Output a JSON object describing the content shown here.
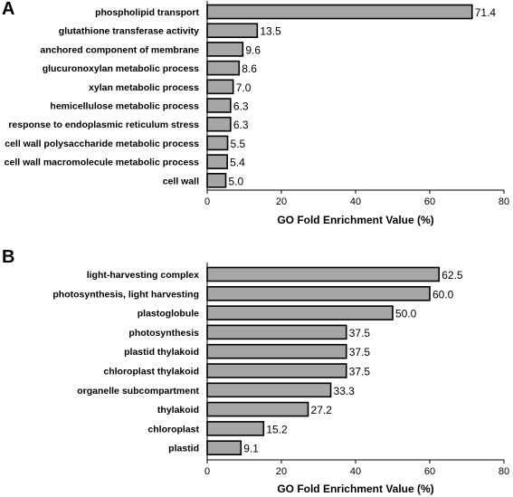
{
  "colors": {
    "bar_fill": "#a6a6a6",
    "bar_stroke": "#000000",
    "text": "#000000"
  },
  "chart_data": [
    {
      "type": "bar",
      "orientation": "horizontal",
      "panel": "A",
      "categories": [
        "phospholipid transport",
        "glutathione transferase activity",
        "anchored component of membrane",
        "glucuronoxylan metabolic process",
        "xylan metabolic process",
        "hemicellulose metabolic process",
        "response to endoplasmic reticulum stress",
        "cell wall polysaccharide metabolic process",
        "cell wall macromolecule metabolic process",
        "cell wall"
      ],
      "values": [
        71.4,
        13.5,
        9.6,
        8.6,
        7.0,
        6.3,
        6.3,
        5.5,
        5.4,
        5.0
      ],
      "value_labels": [
        "71.4",
        "13.5",
        "9.6",
        "8.6",
        "7.0",
        "6.3",
        "6.3",
        "5.5",
        "5.4",
        "5.0"
      ],
      "xlabel": "GO Fold Enrichment Value (%)",
      "xlim": [
        0,
        80
      ],
      "xticks": [
        "0",
        "20",
        "40",
        "60",
        "80"
      ],
      "grid": false,
      "legend": "none"
    },
    {
      "type": "bar",
      "orientation": "horizontal",
      "panel": "B",
      "categories": [
        "light-harvesting complex",
        "photosynthesis, light harvesting",
        "plastoglobule",
        "photosynthesis",
        "plastid thylakoid",
        "chloroplast thylakoid",
        "organelle subcompartment",
        "thylakoid",
        "chloroplast",
        "plastid"
      ],
      "values": [
        62.5,
        60.0,
        50.0,
        37.5,
        37.5,
        37.5,
        33.3,
        27.2,
        15.2,
        9.1
      ],
      "value_labels": [
        "62.5",
        "60.0",
        "50.0",
        "37.5",
        "37.5",
        "37.5",
        "33.3",
        "27.2",
        "15.2",
        "9.1"
      ],
      "xlabel": "GO Fold Enrichment Value (%)",
      "xlim": [
        0,
        80
      ],
      "xticks": [
        "0",
        "20",
        "40",
        "60",
        "80"
      ],
      "grid": false,
      "legend": "none"
    }
  ]
}
